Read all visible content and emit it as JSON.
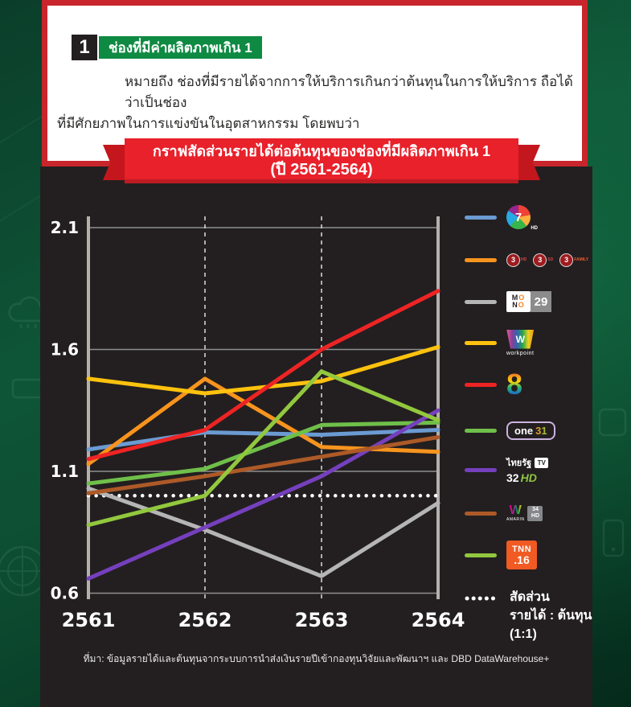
{
  "header_card": {
    "number_badge": "1",
    "title_badge": "ช่องที่มีค่าผลิตภาพเกิน 1",
    "body_line1": "หมายถึง ช่องที่มีรายได้จากการให้บริการเกินกว่าต้นทุนในการให้บริการ ถือได้ว่าเป็นช่อง",
    "body_line2": "ที่มีศักยภาพในการแข่งขันในอุตสาหกรรม โดยพบว่า"
  },
  "ribbon": {
    "line1": "กราฟสัดส่วนรายได้ต่อต้นทุนของช่องที่มีผลิตภาพเกิน 1",
    "line2": "(ปี 2561-2564)",
    "color": "#e8212b"
  },
  "chart_data": {
    "type": "line",
    "title": "กราฟสัดส่วนรายได้ต่อต้นทุนของช่องที่มีผลิตภาพเกิน 1 (ปี 2561-2564)",
    "x_labels": [
      "2561",
      "2562",
      "2563",
      "2564"
    ],
    "y_ticks": [
      2.1,
      1.6,
      1.1,
      0.6
    ],
    "ylim": [
      0.6,
      2.1
    ],
    "grid": {
      "horizontal": "solid",
      "vertical": "dashed"
    },
    "legend_position": "right",
    "background": "#231f20",
    "reference_line": {
      "value": 1.0,
      "style": "dotted",
      "color": "#ffffff",
      "label": "สัดส่วนรายได้ : ต้นทุน (1:1)"
    },
    "series": [
      {
        "id": "ch7hd",
        "name": "ช่อง 7HD",
        "color": "#6b9bd2",
        "values": [
          1.19,
          1.26,
          1.25,
          1.27
        ]
      },
      {
        "id": "ch3",
        "name": "ช่อง 3 (3HD / 3SD / 3Family)",
        "color": "#f7941e",
        "values": [
          1.13,
          1.48,
          1.2,
          1.18
        ]
      },
      {
        "id": "mono29",
        "name": "MONO29",
        "color": "#b5b5b5",
        "values": [
          1.03,
          0.86,
          0.67,
          0.97
        ]
      },
      {
        "id": "workpoint",
        "name": "Workpoint TV",
        "color": "#ffc20e",
        "values": [
          1.48,
          1.42,
          1.47,
          1.61
        ]
      },
      {
        "id": "ch8",
        "name": "ช่อง 8",
        "color": "#ee2424",
        "values": [
          1.15,
          1.27,
          1.6,
          1.84
        ]
      },
      {
        "id": "one31",
        "name": "one31",
        "color": "#6fbf4a",
        "values": [
          1.05,
          1.11,
          1.29,
          1.3
        ]
      },
      {
        "id": "thairath32",
        "name": "ไทยรัฐทีวี 32HD",
        "color": "#7540bd",
        "values": [
          0.66,
          0.87,
          1.08,
          1.35
        ]
      },
      {
        "id": "amarin34",
        "name": "Amarin TV 34HD",
        "color": "#ad5a28",
        "values": [
          1.01,
          1.08,
          1.16,
          1.24
        ]
      },
      {
        "id": "tnn16",
        "name": "TNN16",
        "color": "#92c83e",
        "values": [
          0.88,
          1.0,
          1.51,
          1.31
        ]
      }
    ]
  },
  "legend": {
    "ch7": {
      "digit": "7",
      "hd": "HD"
    },
    "ch3": {
      "digit": "3",
      "tags": [
        "HD",
        "SD",
        "FAMILY"
      ]
    },
    "mono": {
      "line1": "MO",
      "line2": "NO",
      "number": "29"
    },
    "workpoint": {
      "letter": "W",
      "label": "workpoint"
    },
    "ch8": {
      "digit": "8"
    },
    "one": {
      "word": "one",
      "number": "31"
    },
    "thairath": {
      "name": "ไทยรัฐ",
      "tv": "TV",
      "number": "32",
      "hd": "HD"
    },
    "amarin": {
      "label": "AMARIN",
      "mark": "W",
      "number": "34",
      "hd": "HD"
    },
    "tnn": {
      "word": "TNN",
      "number": ".16"
    },
    "reference": {
      "line1": "สัดส่วน",
      "line2": "รายได้ : ต้นทุน",
      "line3": "(1:1)"
    }
  },
  "footer": {
    "source": "ที่มา: ข้อมูลรายได้และต้นทุนจากระบบการนำส่งเงินรายปีเข้ากองทุนวิจัยและพัฒนาฯ และ DBD DataWarehouse+"
  }
}
